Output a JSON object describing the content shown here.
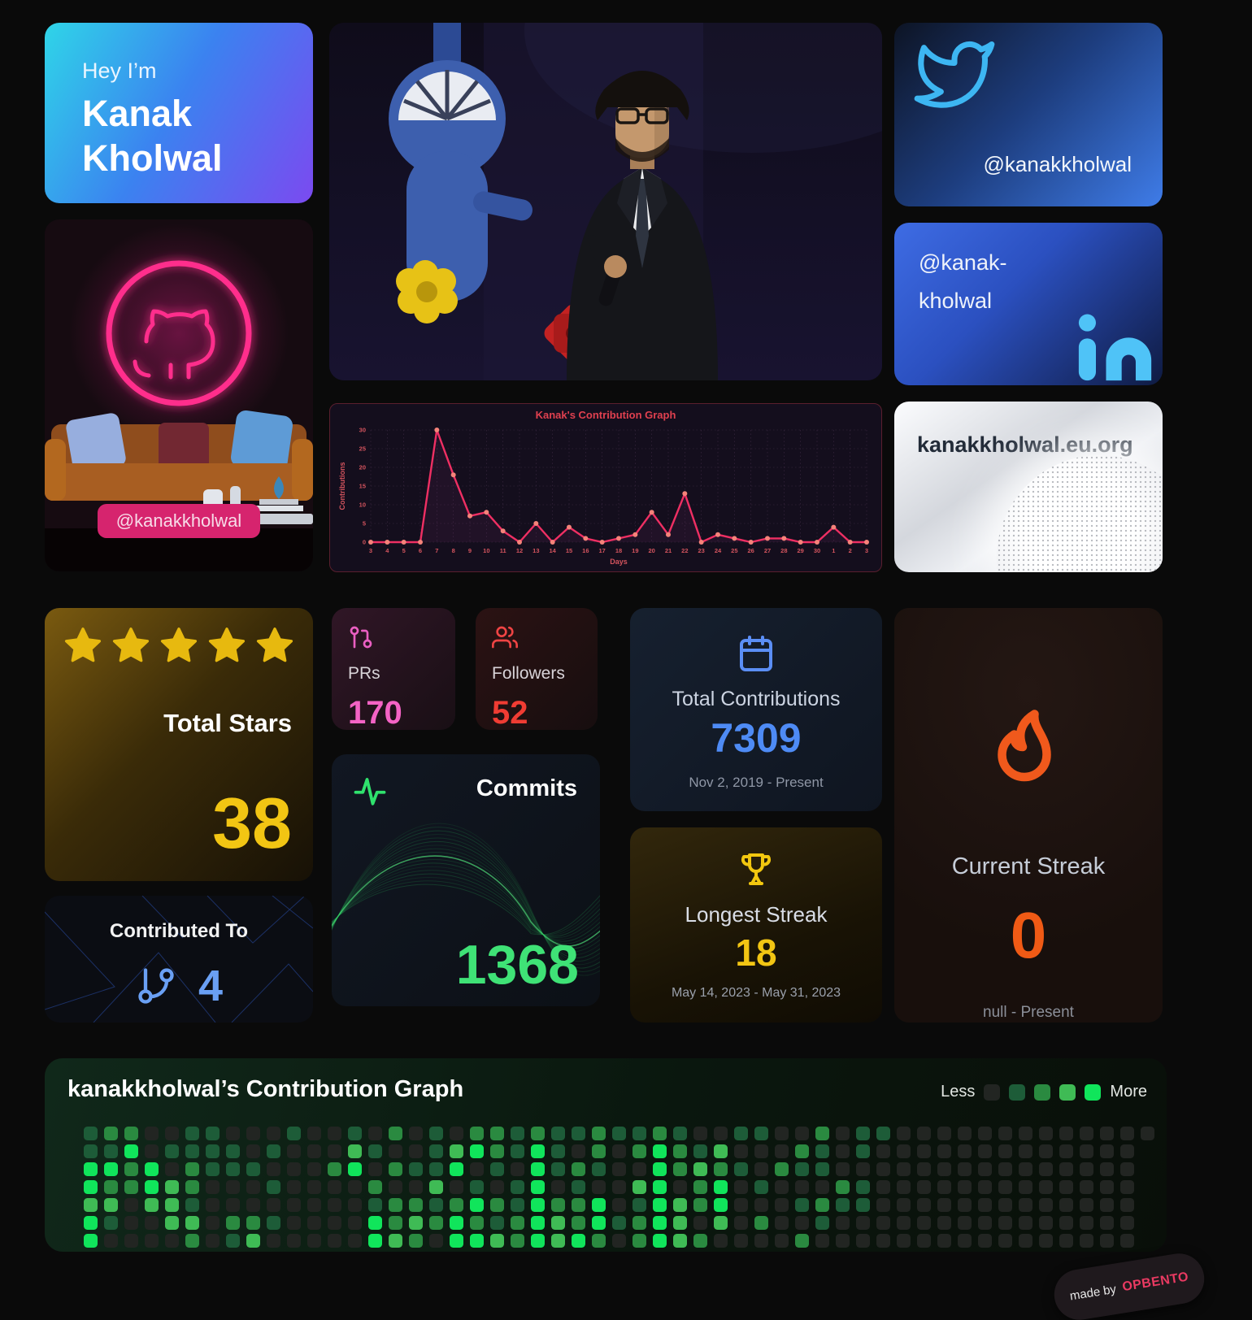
{
  "hero": {
    "greeting": "Hey I’m",
    "name": "Kanak Kholwal"
  },
  "twitter": {
    "handle": "@kanakkholwal"
  },
  "linkedin": {
    "lines": [
      "@kanak-",
      "kholwal"
    ]
  },
  "github_card": {
    "badge": "@kanakkholwal"
  },
  "website": {
    "url": "kanakkholwal.eu.org"
  },
  "stats": {
    "total_stars": {
      "label": "Total Stars",
      "value": "38",
      "stars_count": 5
    },
    "prs": {
      "label": "PRs",
      "value": "170"
    },
    "followers": {
      "label": "Followers",
      "value": "52"
    },
    "total_contributions": {
      "label": "Total Contributions",
      "value": "7309",
      "range": "Nov 2, 2019 - Present"
    },
    "commits": {
      "label": "Commits",
      "value": "1368"
    },
    "longest_streak": {
      "label": "Longest Streak",
      "value": "18",
      "range": "May 14, 2023 - May 31, 2023"
    },
    "current_streak": {
      "label": "Current Streak",
      "value": "0",
      "range": "null - Present"
    },
    "contributed_to": {
      "label": "Contributed To",
      "value": "4"
    }
  },
  "chart_data": [
    {
      "type": "line",
      "title": "Kanak's Contribution Graph",
      "xlabel": "Days",
      "ylabel": "Contributions",
      "x": [
        "3",
        "4",
        "5",
        "6",
        "7",
        "8",
        "9",
        "10",
        "11",
        "12",
        "13",
        "14",
        "15",
        "16",
        "17",
        "18",
        "19",
        "20",
        "21",
        "22",
        "23",
        "24",
        "25",
        "26",
        "27",
        "28",
        "29",
        "30",
        "1",
        "2",
        "3"
      ],
      "values": [
        0,
        0,
        0,
        0,
        30,
        18,
        7,
        8,
        3,
        0,
        5,
        0,
        4,
        1,
        0,
        1,
        2,
        8,
        2,
        13,
        0,
        2,
        1,
        0,
        1,
        1,
        0,
        0,
        4,
        0,
        0
      ],
      "ylim": [
        0,
        30
      ],
      "yticks": [
        0,
        5,
        10,
        15,
        20,
        25,
        30
      ],
      "grid": true,
      "legend_position": "none",
      "line_color": "#ef2f63",
      "dot_color": "#f5837a"
    },
    {
      "type": "heatmap",
      "title": "kanakkholwal’s Contribution Graph",
      "legend_less": "Less",
      "legend_more": "More",
      "rows": 7,
      "cols": 53,
      "level_colors": [
        "#222522",
        "#1d5c38",
        "#2a8a40",
        "#3fbb55",
        "#10e55b"
      ],
      "grid": [
        "12200110001001020102212112112100110020110000000000000",
        "1140111101000310013421410202421300021010000000000000-",
        "4424021110002402114010412100423210211000000000000000-",
        "4224320001000020030101401003402401000210000000000000-",
        "3303310000000012212421422401432400012110000000000000-",
        "4100330221000042324212432412430302001000000000000000-",
        "4000020130000043204432434202432000020000000000000000-"
      ]
    }
  ],
  "footer": {
    "made_by": "made by",
    "brand": "OPBENTO"
  }
}
